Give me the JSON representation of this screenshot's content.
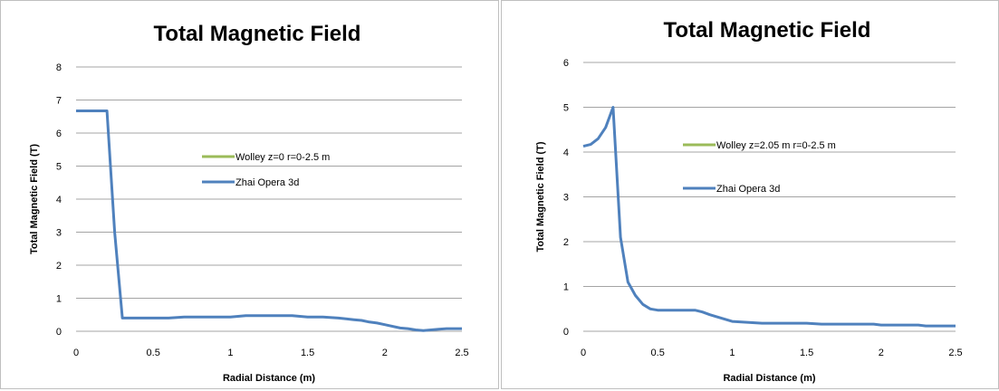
{
  "chart_data": [
    {
      "type": "line",
      "title": "Total Magnetic Field",
      "xlabel": "Radial Distance (m)",
      "ylabel": "Total Magnetic Field (T)",
      "xlim": [
        0,
        2.5
      ],
      "ylim": [
        0,
        8
      ],
      "xticks": [
        "0",
        "0.5",
        "1",
        "1.5",
        "2",
        "2.5"
      ],
      "yticks": [
        "0",
        "1",
        "2",
        "3",
        "4",
        "5",
        "6",
        "7",
        "8"
      ],
      "grid": "horizontal",
      "legend_position": "center",
      "series": [
        {
          "name": "Wolley z=0 r=0-2.5 m",
          "color": "#9bbb59",
          "x": [],
          "y": []
        },
        {
          "name": "Zhai Opera 3d",
          "color": "#4f81bd",
          "x": [
            0,
            0.2,
            0.25,
            0.3,
            0.4,
            0.5,
            0.6,
            0.7,
            0.8,
            0.9,
            1.0,
            1.1,
            1.2,
            1.3,
            1.4,
            1.5,
            1.6,
            1.7,
            1.8,
            1.85,
            1.9,
            1.95,
            2.0,
            2.1,
            2.15,
            2.2,
            2.25,
            2.3,
            2.35,
            2.4,
            2.5
          ],
          "y": [
            6.67,
            6.67,
            3.0,
            0.4,
            0.4,
            0.4,
            0.4,
            0.43,
            0.43,
            0.43,
            0.43,
            0.47,
            0.47,
            0.47,
            0.47,
            0.43,
            0.43,
            0.4,
            0.35,
            0.33,
            0.28,
            0.25,
            0.2,
            0.1,
            0.08,
            0.04,
            0.02,
            0.04,
            0.06,
            0.08,
            0.08
          ]
        }
      ]
    },
    {
      "type": "line",
      "title": "Total Magnetic Field",
      "xlabel": "Radial Distance (m)",
      "ylabel": "Total Magnetic Field (T)",
      "xlim": [
        0,
        2.5
      ],
      "ylim": [
        0,
        6
      ],
      "xticks": [
        "0",
        "0.5",
        "1",
        "1.5",
        "2",
        "2.5"
      ],
      "yticks": [
        "0",
        "1",
        "2",
        "3",
        "4",
        "5",
        "6"
      ],
      "grid": "horizontal",
      "legend_position": "center",
      "series": [
        {
          "name": "Wolley z=2.05 m r=0-2.5 m",
          "color": "#9bbb59",
          "x": [],
          "y": []
        },
        {
          "name": "Zhai Opera 3d",
          "color": "#4f81bd",
          "x": [
            0,
            0.05,
            0.1,
            0.15,
            0.2,
            0.25,
            0.3,
            0.35,
            0.4,
            0.45,
            0.5,
            0.6,
            0.7,
            0.75,
            0.8,
            0.85,
            0.9,
            1.0,
            1.1,
            1.2,
            1.3,
            1.4,
            1.5,
            1.55,
            1.6,
            1.7,
            1.8,
            1.9,
            1.95,
            2.0,
            2.1,
            2.2,
            2.25,
            2.3,
            2.4,
            2.5
          ],
          "y": [
            4.13,
            4.17,
            4.3,
            4.55,
            5.0,
            2.1,
            1.1,
            0.8,
            0.6,
            0.5,
            0.47,
            0.47,
            0.47,
            0.47,
            0.43,
            0.37,
            0.32,
            0.22,
            0.2,
            0.18,
            0.18,
            0.18,
            0.18,
            0.17,
            0.16,
            0.16,
            0.16,
            0.16,
            0.16,
            0.14,
            0.14,
            0.14,
            0.14,
            0.12,
            0.12,
            0.12
          ]
        }
      ]
    }
  ]
}
